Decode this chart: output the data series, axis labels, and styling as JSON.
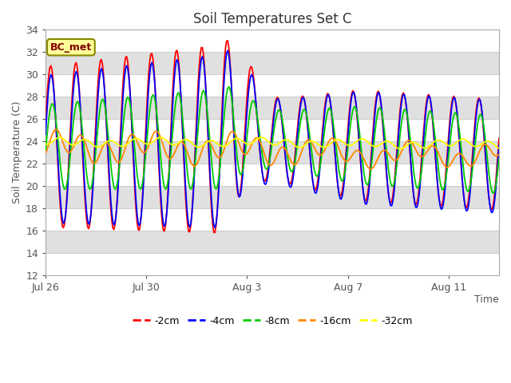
{
  "title": "Soil Temperatures Set C",
  "xlabel": "Time",
  "ylabel": "Soil Temperature (C)",
  "ylim": [
    12,
    34
  ],
  "yticks": [
    12,
    14,
    16,
    18,
    20,
    22,
    24,
    26,
    28,
    30,
    32,
    34
  ],
  "annotation": "BC_met",
  "xtick_labels": [
    "Jul 26",
    "Jul 30",
    "Aug 3",
    "Aug 7",
    "Aug 11"
  ],
  "xtick_positions": [
    0,
    4,
    8,
    12,
    16
  ],
  "xlim": [
    0,
    18
  ],
  "colors": {
    "-2cm": "#ff0000",
    "-4cm": "#0000ff",
    "-8cm": "#00cc00",
    "-16cm": "#ff8800",
    "-32cm": "#ffff00"
  },
  "legend_colors": [
    "#ff0000",
    "#0000ff",
    "#00cc00",
    "#ff8800",
    "#ffff00"
  ],
  "legend_labels": [
    "-2cm",
    "-4cm",
    "-8cm",
    "-16cm",
    "-32cm"
  ],
  "band_colors": [
    "#ffffff",
    "#e0e0e0"
  ],
  "gridline_color": "#cccccc",
  "text_color": "#555555",
  "title_color": "#333333",
  "spine_color": "#aaaaaa",
  "annotation_bg": "#ffff99",
  "annotation_border": "#888800",
  "annotation_text_color": "#800000"
}
